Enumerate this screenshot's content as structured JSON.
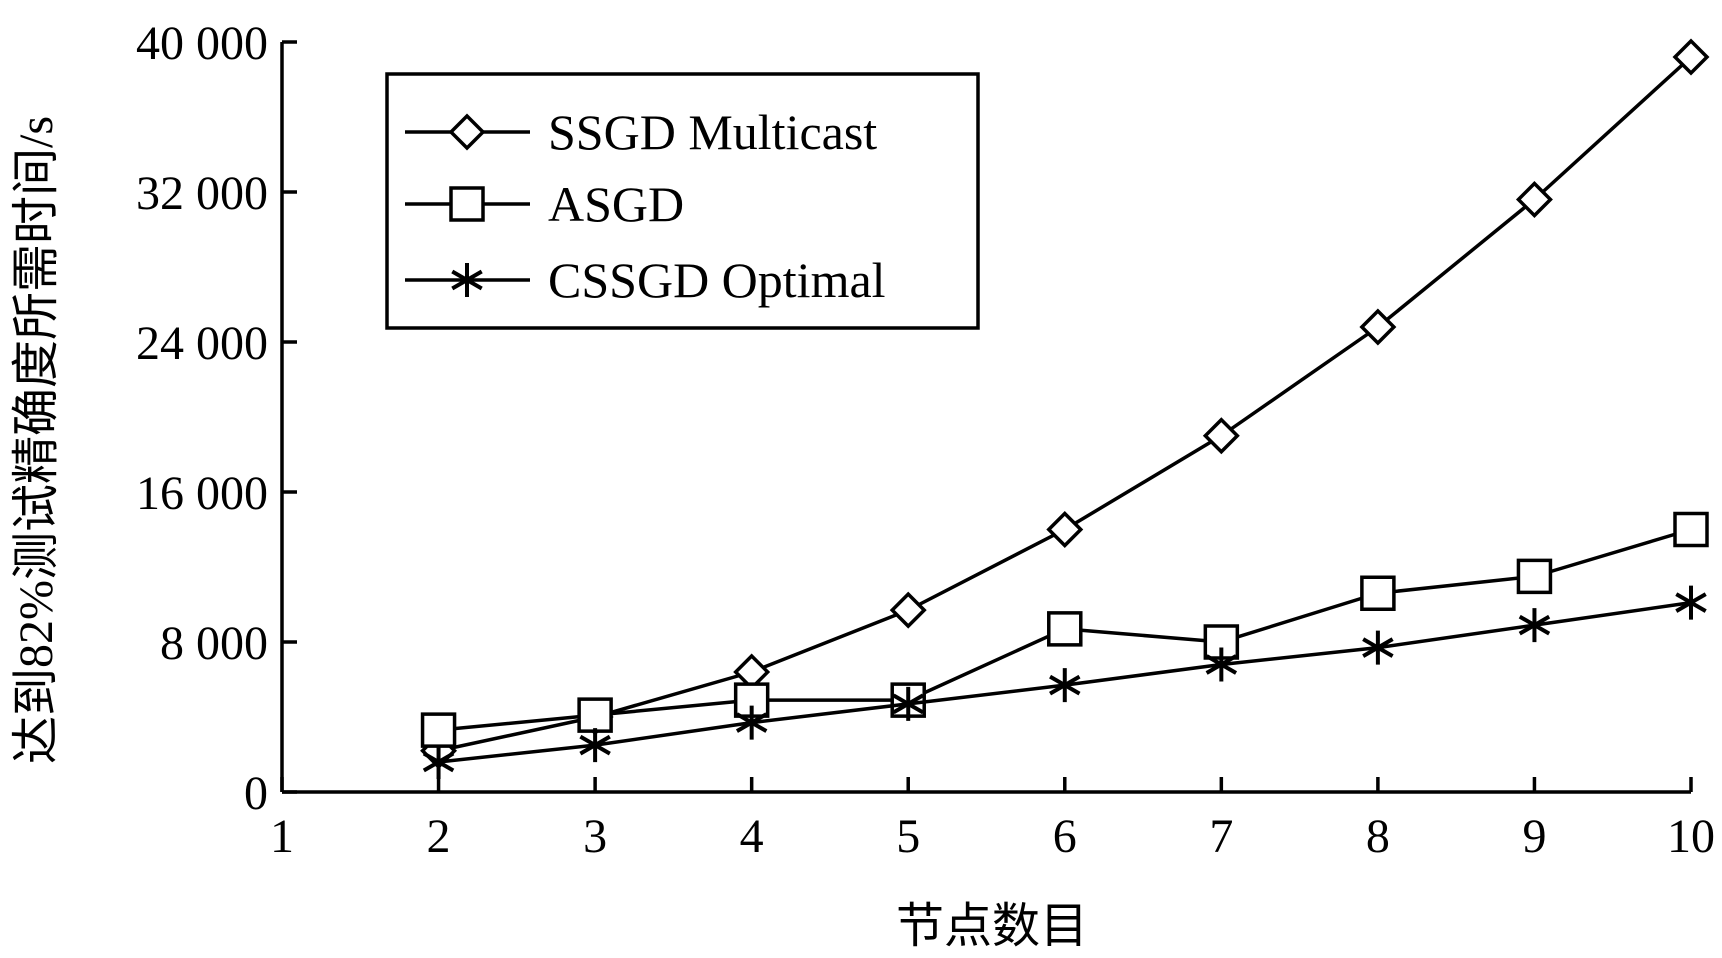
{
  "chart_data": {
    "type": "line",
    "title": "",
    "xlabel": "节点数目",
    "ylabel": "达到82%测试精确度所需时间/s",
    "x": [
      2,
      3,
      4,
      5,
      6,
      7,
      8,
      9,
      10
    ],
    "xlim": [
      1,
      10
    ],
    "ylim": [
      0,
      40000
    ],
    "xticks": [
      1,
      2,
      3,
      4,
      5,
      6,
      7,
      8,
      9,
      10
    ],
    "xtick_labels": [
      "1",
      "2",
      "3",
      "4",
      "5",
      "6",
      "7",
      "8",
      "9",
      "10"
    ],
    "yticks": [
      0,
      8000,
      16000,
      24000,
      32000,
      40000
    ],
    "ytick_labels": [
      "0",
      "8 000",
      "16 000",
      "24 000",
      "32 000",
      "40 000"
    ],
    "grid": false,
    "legend_position": "top-left",
    "series": [
      {
        "name": "SSGD Multicast",
        "marker": "diamond",
        "values": [
          2200,
          4000,
          6400,
          9700,
          14000,
          19000,
          24800,
          31600,
          39200
        ]
      },
      {
        "name": "ASGD",
        "marker": "square",
        "values": [
          3300,
          4100,
          4900,
          4900,
          8700,
          8000,
          10600,
          11500,
          14000
        ]
      },
      {
        "name": "CSSGD Optimal",
        "marker": "asterisk",
        "values": [
          1600,
          2500,
          3700,
          4700,
          5700,
          6800,
          7700,
          8900,
          10100
        ]
      }
    ],
    "colors": {
      "line": "#000000",
      "background": "#ffffff"
    }
  }
}
